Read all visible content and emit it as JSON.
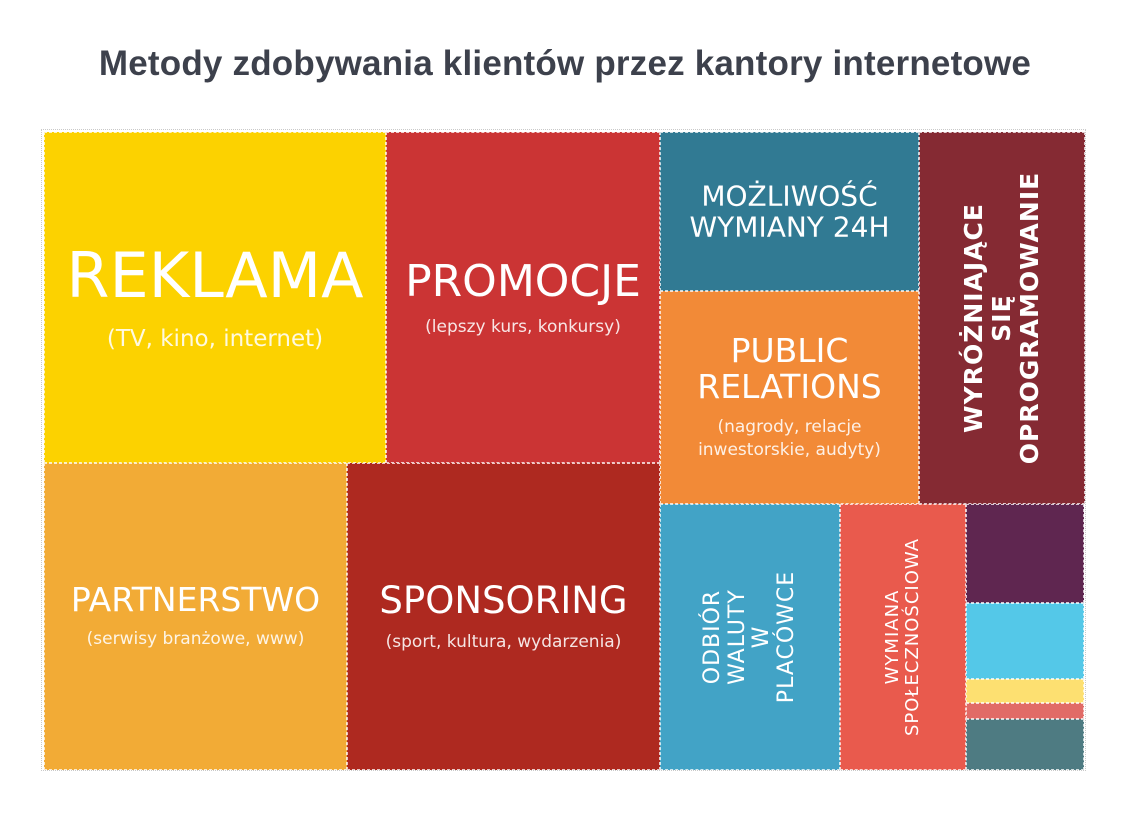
{
  "chart_data": {
    "type": "treemap",
    "title": "Metody zdobywania klientów przez kantory internetowe",
    "items": [
      {
        "label": "REKLAMA",
        "sublabel": "(TV, kino, internet)",
        "color": "#fcd200"
      },
      {
        "label": "PROMOCJE",
        "sublabel": "(lepszy kurs, konkursy)",
        "color": "#cb3434"
      },
      {
        "label": "MOŻLIWOŚĆ\nWYMIANY 24H",
        "sublabel": "",
        "color": "#317a93"
      },
      {
        "label": "WYRÓŻNIAJĄCE\nSIĘ\nOPROGRAMOWANIE",
        "sublabel": "",
        "color": "#852a33"
      },
      {
        "label": "PUBLIC\nRELATIONS",
        "sublabel": "(nagrody, relacje\ninwestorskie, audyty)",
        "color": "#f28a37"
      },
      {
        "label": "PARTNERSTWO",
        "sublabel": "(serwisy branżowe, www)",
        "color": "#f2ab36"
      },
      {
        "label": "SPONSORING",
        "sublabel": "(sport, kultura, wydarzenia)",
        "color": "#ae2920"
      },
      {
        "label": "ODBIÓR WALUTY\nW PLACÓWCE",
        "sublabel": "",
        "color": "#42a3c6"
      },
      {
        "label": "WYMIANA\nSPOŁECZNOŚCIOWA",
        "sublabel": "",
        "color": "#e95a4d"
      },
      {
        "label": "",
        "sublabel": "",
        "color": "#5f2650"
      },
      {
        "label": "",
        "sublabel": "",
        "color": "#54c8e8"
      },
      {
        "label": "",
        "sublabel": "",
        "color": "#fde071"
      },
      {
        "label": "",
        "sublabel": "",
        "color": "#e16b67"
      },
      {
        "label": "",
        "sublabel": "",
        "color": "#4e7b82"
      }
    ]
  }
}
